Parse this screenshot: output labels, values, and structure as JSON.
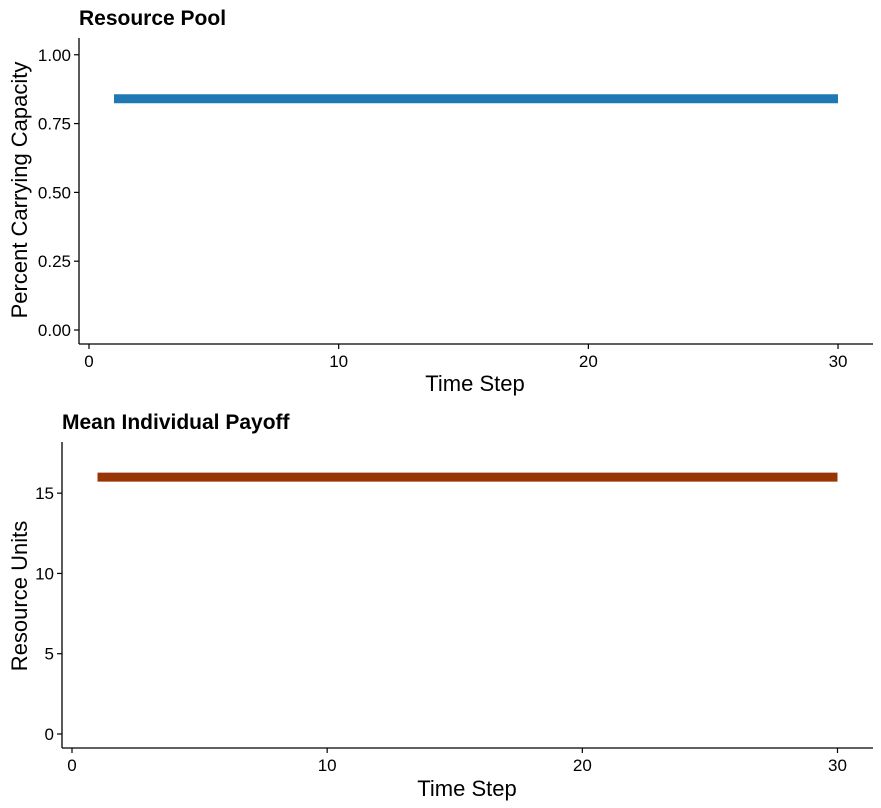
{
  "chart_data": [
    {
      "type": "line",
      "title": "Resource Pool",
      "xlabel": "Time Step",
      "ylabel": "Percent Carrying Capacity",
      "xlim": [
        0,
        31
      ],
      "ylim": [
        0,
        1.05
      ],
      "x_ticks": [
        0,
        10,
        20,
        30
      ],
      "x_tick_labels": [
        "0",
        "10",
        "20",
        "30"
      ],
      "y_ticks": [
        0,
        0.25,
        0.5,
        0.75,
        1.0
      ],
      "y_tick_labels": [
        "0.00",
        "0.25",
        "0.50",
        "0.75",
        "1.00"
      ],
      "grid": false,
      "series": [
        {
          "color": "#1f78b4",
          "x": [
            1,
            30
          ],
          "y": [
            0.84,
            0.84
          ]
        }
      ]
    },
    {
      "type": "line",
      "title": "Mean Individual Payoff",
      "xlabel": "Time Step",
      "ylabel": "Resource Units",
      "xlim": [
        0,
        31
      ],
      "ylim": [
        0,
        18
      ],
      "x_ticks": [
        0,
        10,
        20,
        30
      ],
      "x_tick_labels": [
        "0",
        "10",
        "20",
        "30"
      ],
      "y_ticks": [
        0,
        5,
        10,
        15
      ],
      "y_tick_labels": [
        "0",
        "5",
        "10",
        "15"
      ],
      "grid": false,
      "series": [
        {
          "color": "#993404",
          "x": [
            1,
            30
          ],
          "y": [
            16,
            16
          ]
        }
      ]
    }
  ]
}
